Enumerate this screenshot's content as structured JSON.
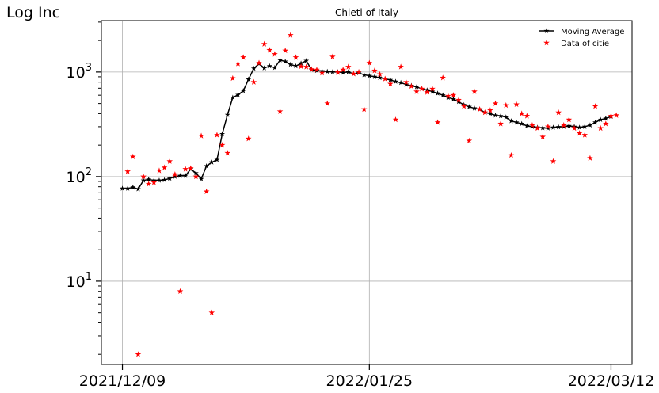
{
  "chart_data": {
    "type": "line+scatter",
    "title": "Chieti of Italy",
    "ylabel": "Log Inc",
    "xlabel": "",
    "y_scale": "log",
    "ylim": [
      1.6,
      3100
    ],
    "xlim": [
      "2021-12-05",
      "2022-03-16"
    ],
    "grid": true,
    "legend_position": "top-right",
    "x_ticks": [
      "2021-12-09",
      "2022-01-25",
      "2022-03-12"
    ],
    "x_tick_labels": [
      "2021/12/09",
      "2022/01/25",
      "2022/03/12"
    ],
    "y_ticks": [
      10,
      100,
      1000
    ],
    "y_tick_labels": [
      "10^1",
      "10^2",
      "10^3"
    ],
    "series": [
      {
        "name": "Moving Average",
        "style": "line-star",
        "color": "#000000",
        "start_date": "2021-12-09",
        "values": [
          77,
          77,
          79,
          76,
          92,
          94,
          92,
          92,
          93,
          96,
          100,
          102,
          102,
          118,
          108,
          95,
          126,
          137,
          145,
          255,
          390,
          570,
          605,
          660,
          850,
          1080,
          1200,
          1090,
          1140,
          1100,
          1300,
          1260,
          1180,
          1140,
          1210,
          1280,
          1050,
          1030,
          1020,
          1010,
          1000,
          1000,
          990,
          1000,
          960,
          980,
          940,
          920,
          900,
          880,
          860,
          840,
          810,
          790,
          760,
          740,
          720,
          690,
          670,
          650,
          625,
          600,
          570,
          550,
          520,
          485,
          465,
          450,
          440,
          410,
          400,
          385,
          380,
          370,
          340,
          330,
          320,
          305,
          300,
          295,
          292,
          290,
          295,
          298,
          300,
          305,
          300,
          295,
          300,
          310,
          330,
          350,
          360,
          375
        ]
      },
      {
        "name": "Data of citie",
        "style": "scatter-star",
        "color": "#ff0000",
        "start_date": "2021-12-10",
        "values": [
          112,
          155,
          2,
          100,
          85,
          88,
          114,
          122,
          140,
          105,
          8,
          118,
          120,
          100,
          245,
          72,
          5,
          250,
          200,
          168,
          870,
          1200,
          1380,
          230,
          800,
          1220,
          1850,
          1620,
          1480,
          420,
          1600,
          2250,
          1380,
          1130,
          1120,
          1060,
          1050,
          980,
          500,
          1400,
          990,
          1050,
          1120,
          960,
          1000,
          440,
          1220,
          1030,
          950,
          860,
          770,
          350,
          1120,
          800,
          730,
          650,
          690,
          640,
          690,
          330,
          880,
          590,
          600,
          540,
          470,
          220,
          650,
          440,
          410,
          430,
          500,
          320,
          480,
          160,
          490,
          400,
          380,
          310,
          290,
          240,
          300,
          140,
          410,
          310,
          350,
          290,
          260,
          250,
          150,
          470,
          290,
          320,
          380,
          385
        ]
      }
    ]
  }
}
